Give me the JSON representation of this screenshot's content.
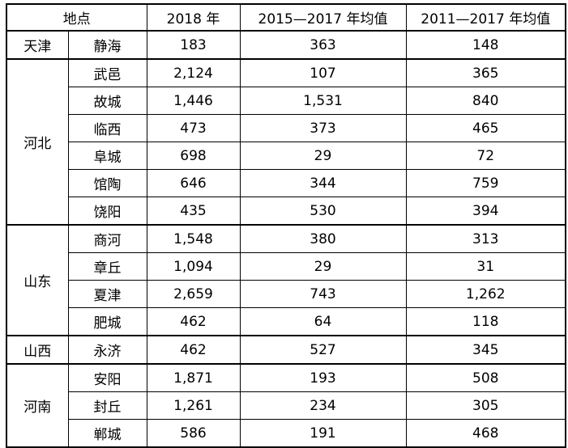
{
  "table": {
    "header": [
      "地点",
      "2018 年",
      "2015—2017 年均值",
      "2011—2017 年均值"
    ],
    "groups": [
      {
        "province": "天津",
        "rows": [
          [
            "静海",
            "183",
            "363",
            "148"
          ]
        ]
      },
      {
        "province": "河北",
        "rows": [
          [
            "武邑",
            "2,124",
            "107",
            "365"
          ],
          [
            "故城",
            "1,446",
            "1,531",
            "840"
          ],
          [
            "临西",
            "473",
            "373",
            "465"
          ],
          [
            "阜城",
            "698",
            "29",
            "72"
          ],
          [
            "馆陶",
            "646",
            "344",
            "759"
          ],
          [
            "饶阳",
            "435",
            "530",
            "394"
          ]
        ]
      },
      {
        "province": "山东",
        "rows": [
          [
            "商河",
            "1,548",
            "380",
            "313"
          ],
          [
            "章丘",
            "1,094",
            "29",
            "31"
          ],
          [
            "夏津",
            "2,659",
            "743",
            "1,262"
          ],
          [
            "肥城",
            "462",
            "64",
            "118"
          ]
        ]
      },
      {
        "province": "山西",
        "rows": [
          [
            "永济",
            "462",
            "527",
            "345"
          ]
        ]
      },
      {
        "province": "河南",
        "rows": [
          [
            "安阳",
            "1,871",
            "193",
            "508"
          ],
          [
            "封丘",
            "1,261",
            "234",
            "305"
          ],
          [
            "郸城",
            "586",
            "191",
            "468"
          ]
        ]
      }
    ]
  }
}
